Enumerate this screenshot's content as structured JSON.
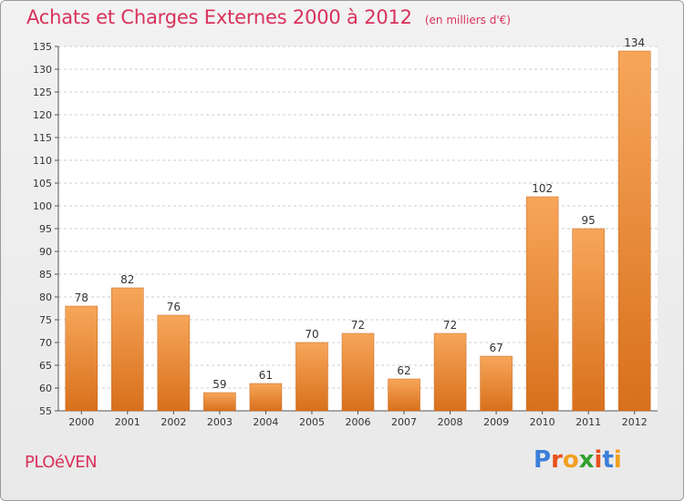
{
  "header": {
    "title": "Achats et Charges Externes 2000 à 2012",
    "subtitle": "(en milliers d'€)"
  },
  "footer": {
    "place": "PLOéVEN",
    "logo": "Proxiti",
    "logo_colors": [
      "#3b7fd9",
      "#e8501c",
      "#f0a020",
      "#33a030",
      "#e8501c",
      "#3b7fd9",
      "#f0a020"
    ]
  },
  "colors": {
    "accent": "#d8325b",
    "bar_top": "#f7a65a",
    "bar_bottom": "#d8701c",
    "grid": "#cccccc",
    "axis_text": "#333333"
  },
  "chart_data": {
    "type": "bar",
    "title": "Achats et Charges Externes 2000 à 2012",
    "subtitle": "(en milliers d'€)",
    "categories": [
      "2000",
      "2001",
      "2002",
      "2003",
      "2004",
      "2005",
      "2006",
      "2007",
      "2008",
      "2009",
      "2010",
      "2011",
      "2012"
    ],
    "values": [
      78,
      82,
      76,
      59,
      61,
      70,
      72,
      62,
      72,
      67,
      102,
      95,
      134
    ],
    "xlabel": "",
    "ylabel": "",
    "ylim": [
      55,
      135
    ],
    "yticks": [
      55,
      60,
      65,
      70,
      75,
      80,
      85,
      90,
      95,
      100,
      105,
      110,
      115,
      120,
      125,
      130,
      135
    ],
    "grid": true,
    "data_labels": true
  }
}
